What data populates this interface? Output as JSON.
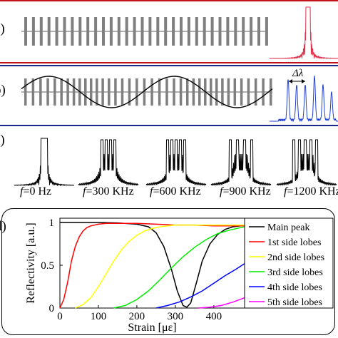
{
  "panels": {
    "a": {
      "label": "a)"
    },
    "b": {
      "label": "b)",
      "delta_label": "Δλ"
    },
    "c": {
      "label": "c)",
      "spectra": [
        {
          "f": "f",
          "val": "=0 Hz"
        },
        {
          "f": "f",
          "val": "=300 KHz"
        },
        {
          "f": "f",
          "val": "=600 KHz"
        },
        {
          "f": "f",
          "val": "=900 KHz"
        },
        {
          "f": "f",
          "val": "=1200 KHz"
        }
      ]
    },
    "d": {
      "label": "d)"
    }
  },
  "colors": {
    "red_rule": "#c0101a",
    "blue_rule": "#1a2a8a",
    "grating": "#7f7f7f",
    "red_spectrum": "#e0304a",
    "blue_spectrum": "#2040d0"
  },
  "chart_data": {
    "type": "line",
    "xlabel": "Strain [με]",
    "ylabel": "Reflectivity [a.u.]",
    "xlim": [
      0,
      480
    ],
    "ylim": [
      0,
      1.05
    ],
    "xticks": [
      "0",
      "100",
      "200",
      "300",
      "400"
    ],
    "yticks": [
      "0",
      "0.5",
      "1"
    ],
    "legend_position": "right",
    "series": [
      {
        "name": "Main peak",
        "color": "#000000",
        "x": [
          0,
          50,
          100,
          150,
          200,
          230,
          250,
          270,
          290,
          305,
          320,
          330,
          340,
          355,
          370,
          390,
          410,
          430,
          450,
          470,
          480
        ],
        "y": [
          1,
          1,
          1,
          0.995,
          0.98,
          0.95,
          0.88,
          0.72,
          0.45,
          0.2,
          0.03,
          0.01,
          0.06,
          0.3,
          0.55,
          0.75,
          0.86,
          0.92,
          0.95,
          0.96,
          0.96
        ]
      },
      {
        "name": "1st side lobes",
        "color": "#ff0000",
        "x": [
          0,
          10,
          20,
          30,
          40,
          50,
          60,
          70,
          80,
          100,
          120,
          150,
          200,
          250,
          300,
          350,
          400,
          450,
          480
        ],
        "y": [
          0,
          0.1,
          0.3,
          0.55,
          0.72,
          0.83,
          0.9,
          0.94,
          0.96,
          0.98,
          0.99,
          0.99,
          0.99,
          0.98,
          0.97,
          0.97,
          0.96,
          0.96,
          0.96
        ]
      },
      {
        "name": "2nd side lobes",
        "color": "#ffff00",
        "x": [
          40,
          60,
          80,
          100,
          120,
          140,
          160,
          180,
          200,
          220,
          240,
          260,
          280,
          300,
          350,
          400,
          450,
          480
        ],
        "y": [
          0,
          0.04,
          0.12,
          0.25,
          0.4,
          0.55,
          0.68,
          0.78,
          0.85,
          0.9,
          0.93,
          0.95,
          0.96,
          0.97,
          0.97,
          0.97,
          0.97,
          0.97
        ]
      },
      {
        "name": "3rd side lobes",
        "color": "#00ee00",
        "x": [
          140,
          170,
          200,
          230,
          260,
          290,
          320,
          350,
          380,
          410,
          440,
          470,
          480
        ],
        "y": [
          0,
          0.03,
          0.1,
          0.2,
          0.33,
          0.47,
          0.6,
          0.71,
          0.8,
          0.87,
          0.91,
          0.94,
          0.95
        ]
      },
      {
        "name": "4th side lobes",
        "color": "#0000ff",
        "x": [
          250,
          280,
          310,
          340,
          370,
          400,
          430,
          460,
          480
        ],
        "y": [
          0,
          0.03,
          0.07,
          0.13,
          0.2,
          0.29,
          0.38,
          0.46,
          0.52
        ]
      },
      {
        "name": "5th side lobes",
        "color": "#ff00ff",
        "x": [
          360,
          390,
          420,
          450,
          480
        ],
        "y": [
          0,
          0.01,
          0.03,
          0.07,
          0.12
        ]
      }
    ]
  }
}
